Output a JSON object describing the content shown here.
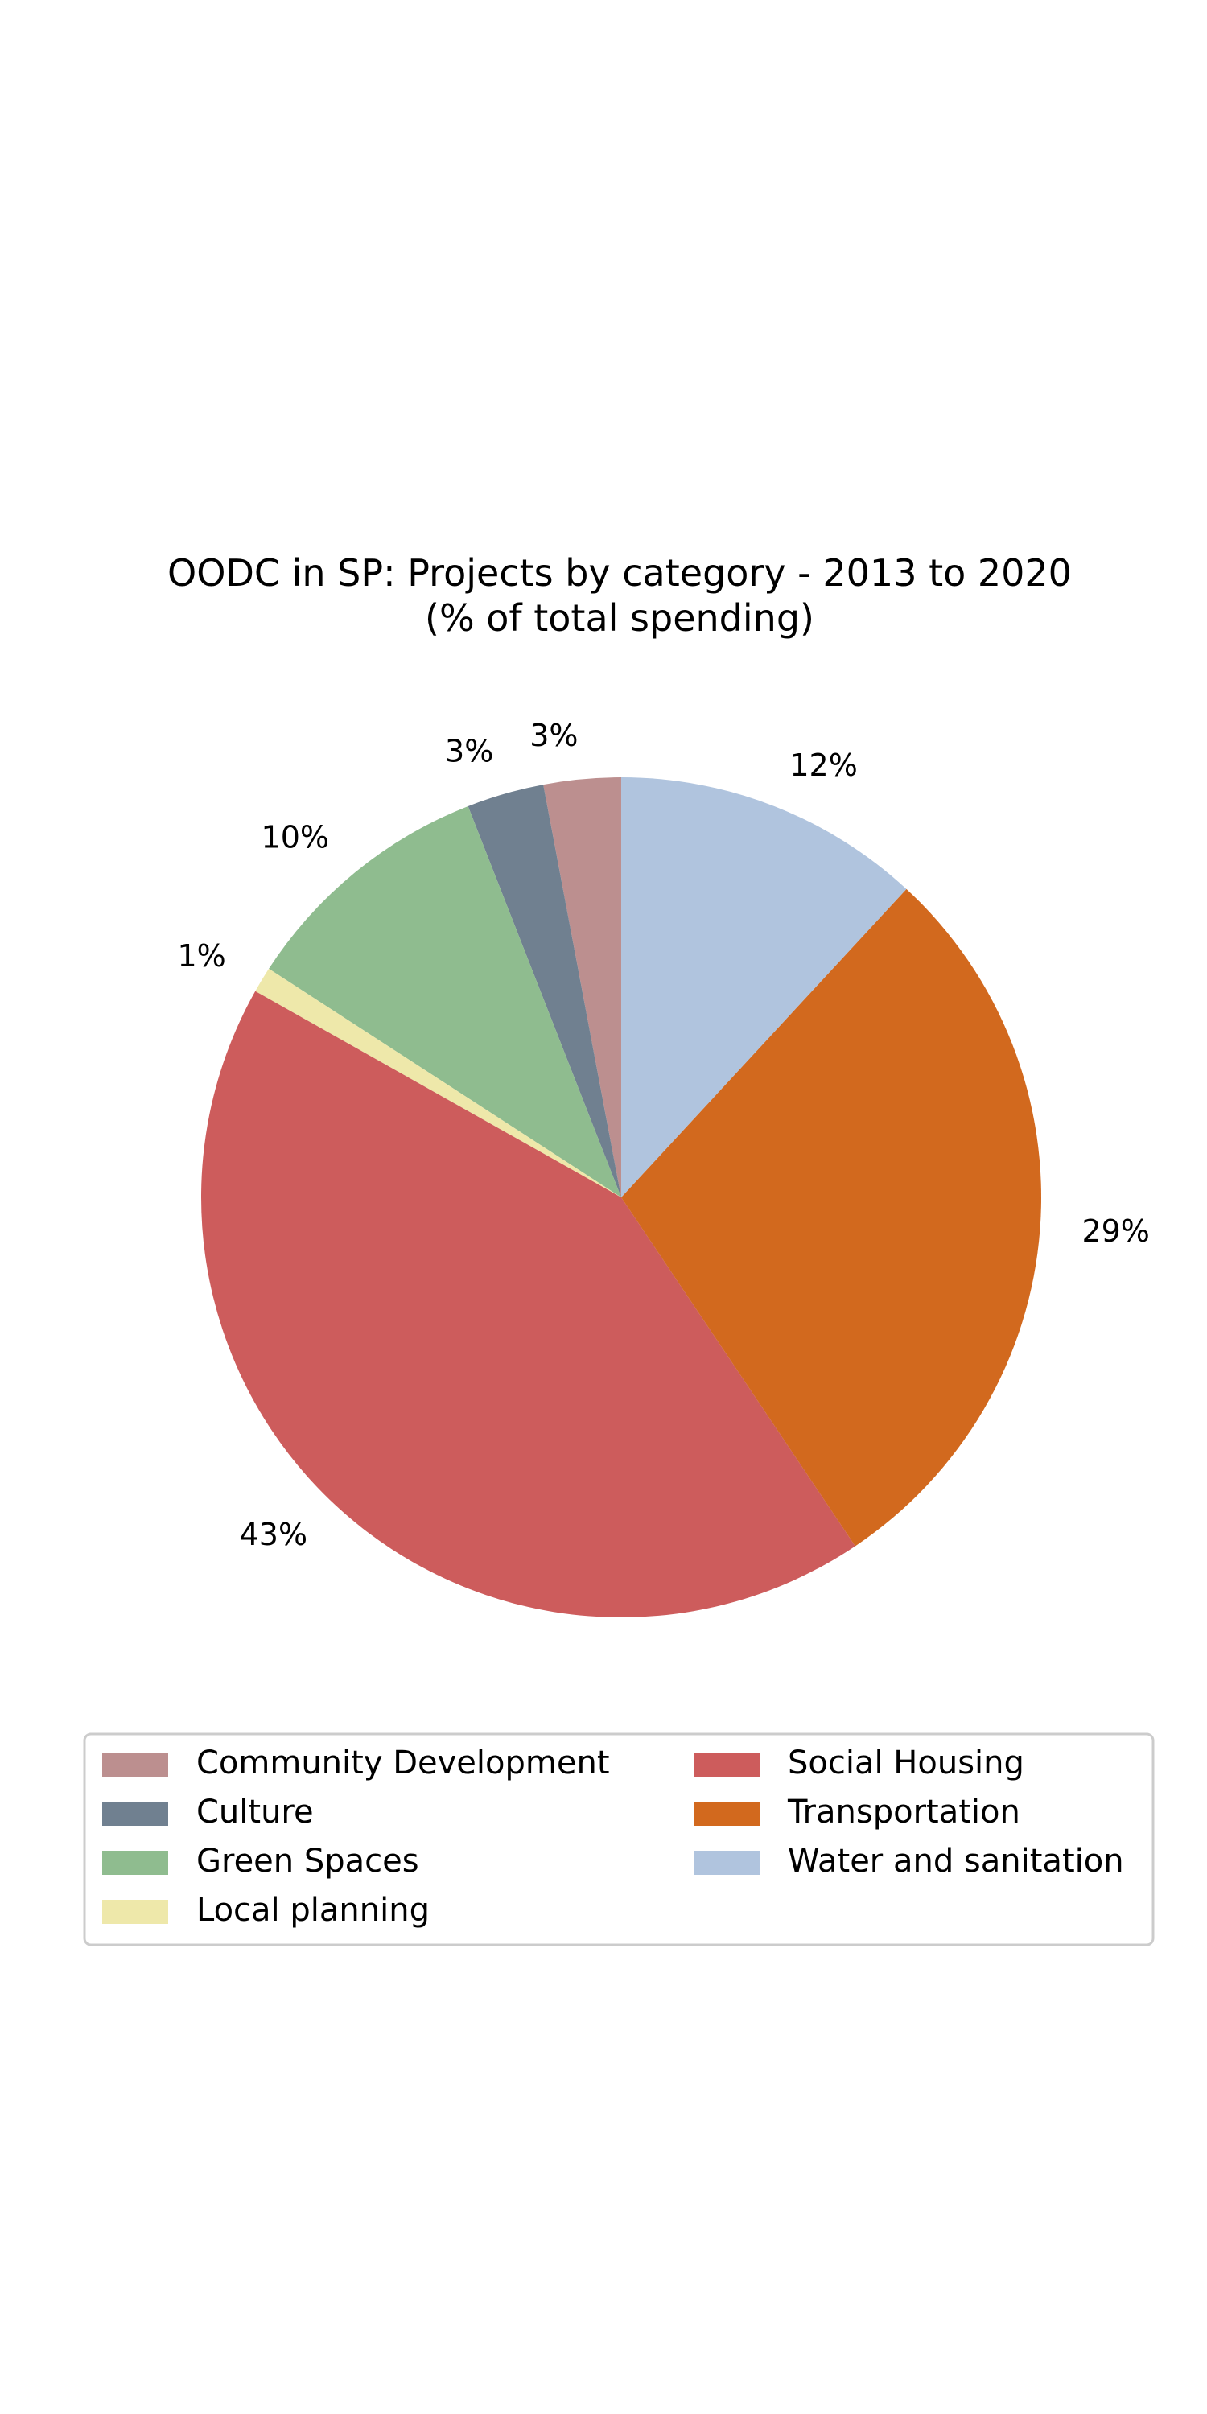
{
  "chart_data": {
    "type": "pie",
    "title": [
      "OODC in SP: Projects by category - 2013 to 2020",
      "(% of total spending)"
    ],
    "slices": [
      {
        "label": "Community Development",
        "value": 3,
        "display": "3%",
        "color": "#bc8f8f"
      },
      {
        "label": "Culture",
        "value": 3,
        "display": "3%",
        "color": "#708090"
      },
      {
        "label": "Green Spaces",
        "value": 10,
        "display": "10%",
        "color": "#8fbc8f"
      },
      {
        "label": "Local planning",
        "value": 1,
        "display": "1%",
        "color": "#eee8aa"
      },
      {
        "label": "Social Housing",
        "value": 43,
        "display": "43%",
        "color": "#cd5c5c"
      },
      {
        "label": "Transportation",
        "value": 29,
        "display": "29%",
        "color": "#d2691e"
      },
      {
        "label": "Water and sanitation",
        "value": 12,
        "display": "12%",
        "color": "#b0c4de"
      }
    ],
    "start_angle_deg": 90,
    "direction": "counterclockwise",
    "legend": {
      "placement": "bottom-center",
      "columns": 2
    }
  }
}
